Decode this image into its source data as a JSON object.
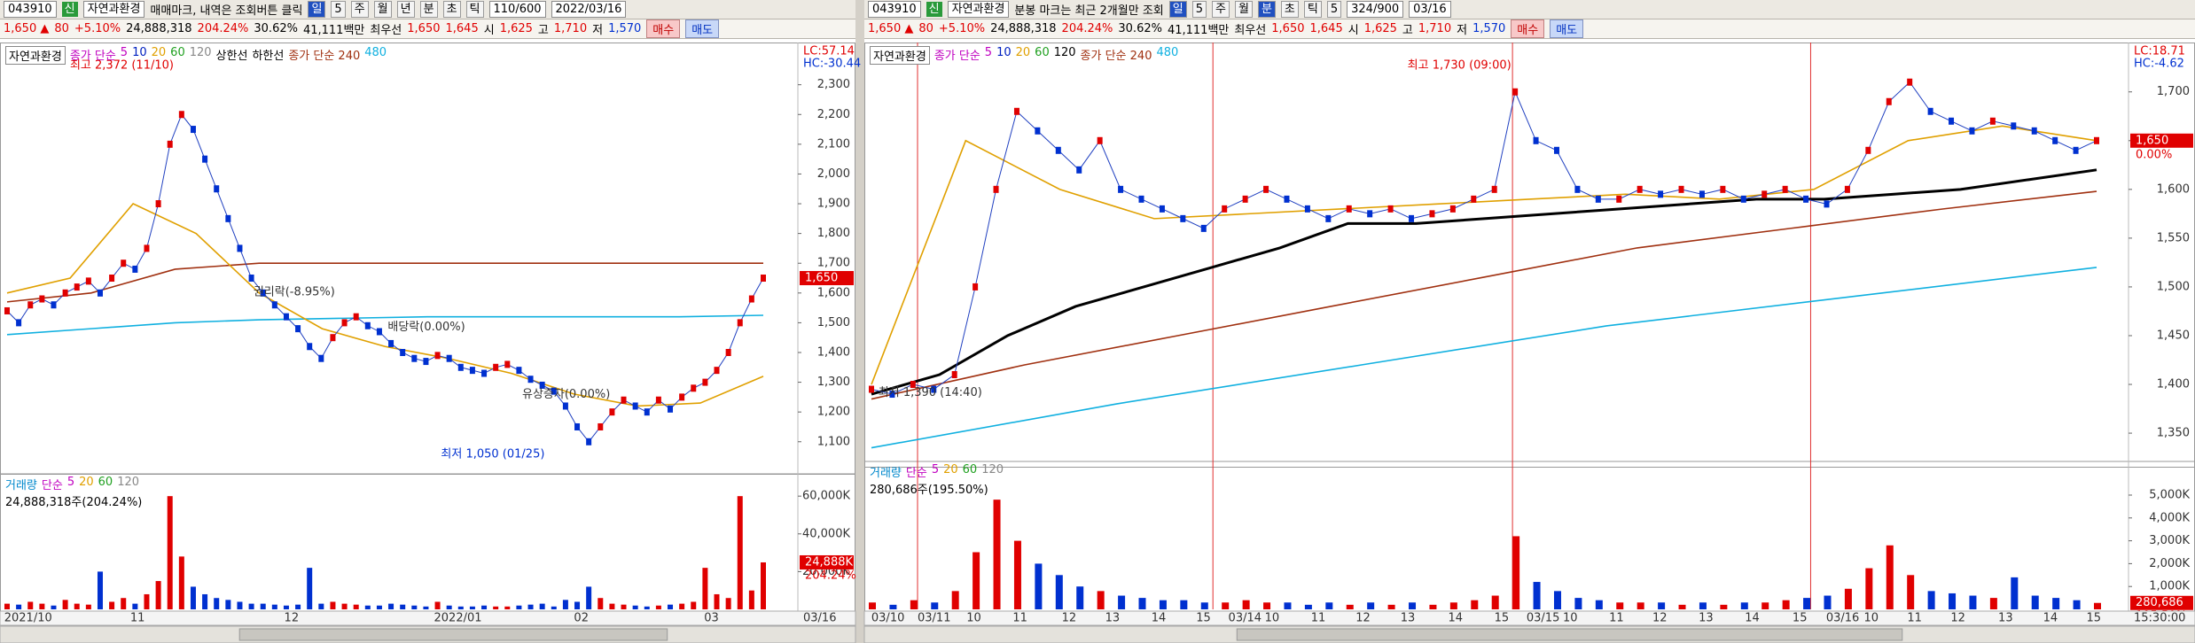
{
  "left": {
    "toolbar": {
      "code": "043910",
      "badge": "신",
      "name": "자연과환경",
      "notice": "매매마크, 내역은 조회버튼 클릭",
      "period": [
        "일",
        "5",
        "주",
        "월",
        "년",
        "분",
        "초",
        "틱"
      ],
      "count": "110/600",
      "date": "2022/03/16"
    },
    "quote": {
      "price": "1,650 ▲",
      "change": "80",
      "rate": "+5.10%",
      "volume": "24,888,318",
      "vol_ratio": "204.24%",
      "turnover": "30.62%",
      "amount": "41,111백만",
      "best_label": "최우선",
      "ask": "1,650",
      "bid": "1,645",
      "open_label": "시",
      "open": "1,625",
      "high_label": "고",
      "high": "1,710",
      "low_label": "저",
      "low": "1,570",
      "buy": "매수",
      "sell": "매도"
    },
    "price_chart": {
      "legend": [
        {
          "text": "자연과환경",
          "color": "#000"
        },
        {
          "text": "종가 단순",
          "color": "#c000c0"
        },
        {
          "text": "5",
          "color": "#c000c0"
        },
        {
          "text": "10",
          "color": "#0020c0"
        },
        {
          "text": "20",
          "color": "#e0a000"
        },
        {
          "text": "60",
          "color": "#20a020"
        },
        {
          "text": "120",
          "color": "#888888"
        },
        {
          "text": "상한선",
          "color": "#000"
        },
        {
          "text": "하한선",
          "color": "#000"
        },
        {
          "text": "종가 단순 240",
          "color": "#a03010"
        },
        {
          "text": "480",
          "color": "#10b0e0"
        }
      ],
      "lc": "LC:57.14",
      "hc": "HC:-30.44",
      "annotations": [
        "최고 2,372 (11/10)",
        "권리락(-8.95%)",
        "배당락(0.00%)",
        "유상증자(0.00%)",
        "최저 1,050 (01/25)"
      ],
      "ylim": [
        1010,
        2430
      ],
      "yticks": [
        {
          "value": 2300,
          "label": "2,300"
        },
        {
          "value": 2200,
          "label": "2,200"
        },
        {
          "value": 2100,
          "label": "2,100"
        },
        {
          "value": 2000,
          "label": "2,000"
        },
        {
          "value": 1900,
          "label": "1,900"
        },
        {
          "value": 1800,
          "label": "1,800"
        },
        {
          "value": 1700,
          "label": "1,700"
        },
        {
          "value": 1600,
          "label": "1,600"
        },
        {
          "value": 1500,
          "label": "1,500"
        },
        {
          "value": 1400,
          "label": "1,400"
        },
        {
          "value": 1300,
          "label": "1,300"
        },
        {
          "value": 1200,
          "label": "1,200"
        },
        {
          "value": 1100,
          "label": "1,100"
        }
      ],
      "close": [
        1540,
        1500,
        1560,
        1580,
        1560,
        1600,
        1620,
        1640,
        1600,
        1650,
        1700,
        1680,
        1750,
        1900,
        2100,
        2200,
        2150,
        2050,
        1950,
        1850,
        1750,
        1650,
        1600,
        1560,
        1520,
        1480,
        1420,
        1380,
        1450,
        1500,
        1520,
        1490,
        1470,
        1430,
        1400,
        1380,
        1370,
        1390,
        1380,
        1350,
        1340,
        1330,
        1350,
        1360,
        1340,
        1310,
        1290,
        1270,
        1220,
        1150,
        1100,
        1150,
        1200,
        1240,
        1220,
        1200,
        1240,
        1210,
        1250,
        1280,
        1300,
        1340,
        1400,
        1500,
        1580,
        1650
      ],
      "ma_lines": [
        {
          "color": "#a03010",
          "values": [
            1570,
            1600,
            1680,
            1700,
            1700,
            1700,
            1700,
            1700,
            1700,
            1700
          ]
        },
        {
          "color": "#10b0e0",
          "values": [
            1460,
            1480,
            1500,
            1510,
            1515,
            1520,
            1520,
            1520,
            1520,
            1525
          ]
        },
        {
          "color": "#e0a000",
          "values": [
            1600,
            1650,
            1900,
            1800,
            1600,
            1480,
            1420,
            1380,
            1330,
            1260,
            1220,
            1230,
            1320
          ]
        }
      ],
      "current": {
        "value": 1650,
        "label": "1,650"
      }
    },
    "volume_chart": {
      "legend": [
        {
          "text": "거래량",
          "color": "#0088cc"
        },
        {
          "text": "단순",
          "color": "#c000c0"
        },
        {
          "text": "5",
          "color": "#c000c0"
        },
        {
          "text": "20",
          "color": "#e0a000"
        },
        {
          "text": "60",
          "color": "#20a020"
        },
        {
          "text": "120",
          "color": "#888888"
        }
      ],
      "info": "24,888,318주(204.24%)",
      "ylim": [
        0,
        69000
      ],
      "yticks": [
        {
          "value": 60000,
          "label": "60,000K"
        },
        {
          "value": 40000,
          "label": "40,000K"
        },
        {
          "value": 20000,
          "label": "20,000K"
        }
      ],
      "values": [
        3000,
        2500,
        4000,
        3000,
        2000,
        5000,
        3000,
        2500,
        20000,
        4000,
        6000,
        3000,
        8000,
        15000,
        60000,
        28000,
        12000,
        8000,
        6000,
        5000,
        4000,
        3000,
        3000,
        2500,
        2000,
        2500,
        22000,
        3000,
        4000,
        3000,
        2500,
        2000,
        2000,
        3000,
        2500,
        2000,
        1500,
        4000,
        2000,
        1500,
        1500,
        2000,
        1500,
        1500,
        2000,
        2500,
        3000,
        1500,
        5000,
        4000,
        12000,
        6000,
        3000,
        2500,
        2000,
        1500,
        2000,
        2500,
        3000,
        4000,
        22000,
        8000,
        6000,
        60000,
        10000,
        24888
      ],
      "current": {
        "value": 24888,
        "label": "24,888K"
      },
      "ratio": "204.24%"
    },
    "dates": [
      "2021/10",
      "11",
      "12",
      "2022/01",
      "02",
      "03"
    ],
    "axis_date": "03/16"
  },
  "right": {
    "toolbar": {
      "code": "043910",
      "badge": "신",
      "name": "자연과환경",
      "notice": "분봉 마크는 최근 2개월만 조회",
      "period": [
        "일",
        "5",
        "주",
        "월",
        "분",
        "초",
        "틱",
        "5"
      ],
      "count": "324/900",
      "date": "03/16"
    },
    "quote": {
      "price": "1,650 ▲",
      "change": "80",
      "rate": "+5.10%",
      "volume": "24,888,318",
      "vol_ratio": "204.24%",
      "turnover": "30.62%",
      "amount": "41,111백만",
      "best_label": "최우선",
      "ask": "1,650",
      "bid": "1,645",
      "open_label": "시",
      "open": "1,625",
      "high_label": "고",
      "high": "1,710",
      "low_label": "저",
      "low": "1,570",
      "buy": "매수",
      "sell": "매도"
    },
    "price_chart": {
      "legend": [
        {
          "text": "자연과환경",
          "color": "#000"
        },
        {
          "text": "종가 단순",
          "color": "#c000c0"
        },
        {
          "text": "5",
          "color": "#c000c0"
        },
        {
          "text": "10",
          "color": "#0020c0"
        },
        {
          "text": "20",
          "color": "#e0a000"
        },
        {
          "text": "60",
          "color": "#20a020"
        },
        {
          "text": "120",
          "color": "#000000"
        },
        {
          "text": "종가 단순 240",
          "color": "#a03010"
        },
        {
          "text": "480",
          "color": "#10b0e0"
        }
      ],
      "lc": "LC:18.71",
      "hc": "HC:-4.62",
      "annotations": [
        "최고 1,730 (09:00)",
        "최저 1,390 (14:40)"
      ],
      "ylim": [
        1321,
        1747
      ],
      "yticks": [
        {
          "value": 1700,
          "label": "1,700"
        },
        {
          "value": 1650,
          "label": "1,650"
        },
        {
          "value": 1600,
          "label": "1,600"
        },
        {
          "value": 1550,
          "label": "1,550"
        },
        {
          "value": 1500,
          "label": "1,500"
        },
        {
          "value": 1450,
          "label": "1,450"
        },
        {
          "value": 1400,
          "label": "1,400"
        },
        {
          "value": 1350,
          "label": "1,350"
        }
      ],
      "close": [
        1395,
        1390,
        1400,
        1395,
        1410,
        1500,
        1600,
        1680,
        1660,
        1640,
        1620,
        1650,
        1600,
        1590,
        1580,
        1570,
        1560,
        1580,
        1590,
        1600,
        1590,
        1580,
        1570,
        1580,
        1575,
        1580,
        1570,
        1575,
        1580,
        1590,
        1600,
        1700,
        1650,
        1640,
        1600,
        1590,
        1590,
        1600,
        1595,
        1600,
        1595,
        1600,
        1590,
        1595,
        1600,
        1590,
        1585,
        1600,
        1640,
        1690,
        1710,
        1680,
        1670,
        1660,
        1670,
        1665,
        1660,
        1650,
        1640,
        1650
      ],
      "ma_lines": [
        {
          "color": "#000000",
          "values": [
            1390,
            1410,
            1450,
            1480,
            1500,
            1520,
            1540,
            1565,
            1565,
            1570,
            1575,
            1580,
            1585,
            1590,
            1590,
            1595,
            1600,
            1610,
            1620
          ]
        },
        {
          "color": "#a03010",
          "values": [
            1385,
            1420,
            1450,
            1480,
            1510,
            1540,
            1560,
            1580,
            1598
          ]
        },
        {
          "color": "#10b0e0",
          "values": [
            1335,
            1380,
            1420,
            1460,
            1490,
            1520
          ]
        },
        {
          "color": "#e0a000",
          "values": [
            1400,
            1650,
            1600,
            1570,
            1575,
            1580,
            1585,
            1590,
            1595,
            1590,
            1600,
            1650,
            1665,
            1650
          ]
        }
      ],
      "current": {
        "value": 1650,
        "label": "1,650"
      },
      "current_rate": "0.00%"
    },
    "volume_chart": {
      "legend": [
        {
          "text": "거래량",
          "color": "#0088cc"
        },
        {
          "text": "단순",
          "color": "#c000c0"
        },
        {
          "text": "5",
          "color": "#c000c0"
        },
        {
          "text": "20",
          "color": "#e0a000"
        },
        {
          "text": "60",
          "color": "#20a020"
        },
        {
          "text": "120",
          "color": "#888888"
        }
      ],
      "info": "280,686주(195.50%)",
      "ylim": [
        0,
        6240
      ],
      "yticks": [
        {
          "value": 5000,
          "label": "5,000K"
        },
        {
          "value": 4000,
          "label": "4,000K"
        },
        {
          "value": 3000,
          "label": "3,000K"
        },
        {
          "value": 2000,
          "label": "2,000K"
        },
        {
          "value": 1000,
          "label": "1,000K"
        }
      ],
      "values": [
        300,
        200,
        400,
        300,
        800,
        2500,
        4800,
        3000,
        2000,
        1500,
        1000,
        800,
        600,
        500,
        400,
        400,
        300,
        300,
        400,
        300,
        300,
        200,
        300,
        200,
        300,
        200,
        300,
        200,
        300,
        400,
        600,
        3200,
        1200,
        800,
        500,
        400,
        300,
        300,
        300,
        200,
        300,
        200,
        300,
        300,
        400,
        500,
        600,
        900,
        1800,
        2800,
        1500,
        800,
        700,
        600,
        500,
        1400,
        600,
        500,
        400,
        281
      ],
      "current": {
        "value": 281,
        "label": "280,686"
      },
      "ratio": "195.50%"
    },
    "dates": [
      "03/10",
      "03/11",
      "10",
      "11",
      "12",
      "13",
      "14",
      "15",
      "03/14",
      "10",
      "11",
      "12",
      "13",
      "14",
      "15",
      "03/15",
      "10",
      "11",
      "12",
      "13",
      "14",
      "15",
      "03/16",
      "10",
      "11",
      "12",
      "13",
      "14",
      "15"
    ],
    "axis_date": "15:30:00"
  }
}
